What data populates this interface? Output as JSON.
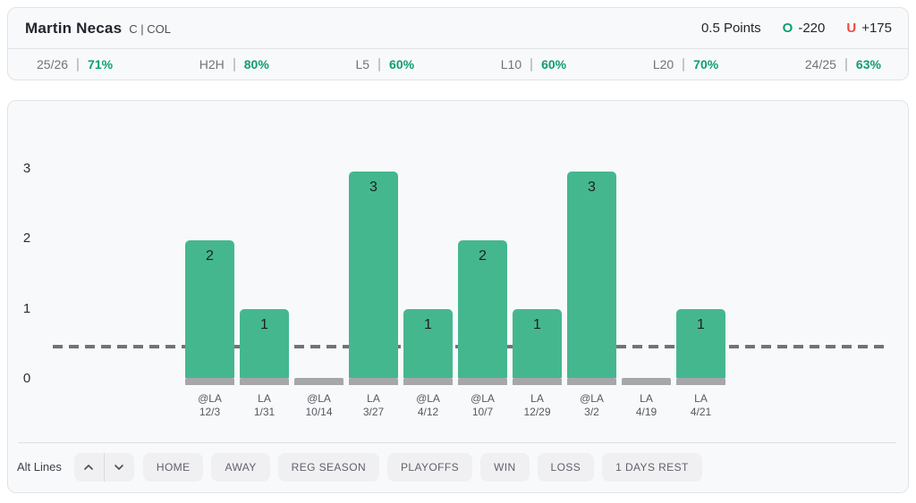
{
  "header": {
    "player_name": "Martin Necas",
    "position_team": "C | COL",
    "line": "0.5 Points",
    "over_label": "O",
    "over_odds": "-220",
    "under_label": "U",
    "under_odds": "+175"
  },
  "stats": [
    {
      "label": "25/26",
      "value": "71%"
    },
    {
      "label": "H2H",
      "value": "80%"
    },
    {
      "label": "L5",
      "value": "60%"
    },
    {
      "label": "L10",
      "value": "60%"
    },
    {
      "label": "L20",
      "value": "70%"
    },
    {
      "label": "24/25",
      "value": "63%"
    }
  ],
  "chart_data": {
    "type": "bar",
    "categories": [
      "@LA 12/3",
      "LA 1/31",
      "@LA 10/14",
      "LA 3/27",
      "@LA 4/12",
      "@LA 10/7",
      "LA 12/29",
      "@LA 3/2",
      "LA 4/19",
      "LA 4/21"
    ],
    "games": [
      {
        "opponent": "@LA",
        "date": "12/3",
        "value": 2
      },
      {
        "opponent": "LA",
        "date": "1/31",
        "value": 1
      },
      {
        "opponent": "@LA",
        "date": "10/14",
        "value": 0
      },
      {
        "opponent": "LA",
        "date": "3/27",
        "value": 3
      },
      {
        "opponent": "@LA",
        "date": "4/12",
        "value": 1
      },
      {
        "opponent": "@LA",
        "date": "10/7",
        "value": 2
      },
      {
        "opponent": "LA",
        "date": "12/29",
        "value": 1
      },
      {
        "opponent": "@LA",
        "date": "3/2",
        "value": 3
      },
      {
        "opponent": "LA",
        "date": "4/19",
        "value": 0
      },
      {
        "opponent": "LA",
        "date": "4/21",
        "value": 1
      }
    ],
    "values": [
      2,
      1,
      0,
      3,
      1,
      2,
      1,
      3,
      0,
      1
    ],
    "reference_line": 0.5,
    "yticks": [
      0,
      1,
      2,
      3
    ],
    "ylim": [
      0,
      3.5
    ],
    "grid": false,
    "legend": "none",
    "bar_color": "#45b78f",
    "bar_base_color": "#a6a6ab",
    "reference_line_color": "#737377"
  },
  "filters": {
    "alt_lines_label": "Alt Lines",
    "buttons": [
      "HOME",
      "AWAY",
      "REG SEASON",
      "PLAYOFFS",
      "WIN",
      "LOSS",
      "1 DAYS REST"
    ]
  },
  "colors": {
    "stat_green": "#0d9e6e",
    "over_green": "#0d9e6e",
    "under_red": "#f04a44",
    "card_bg": "#f8f9fb"
  }
}
